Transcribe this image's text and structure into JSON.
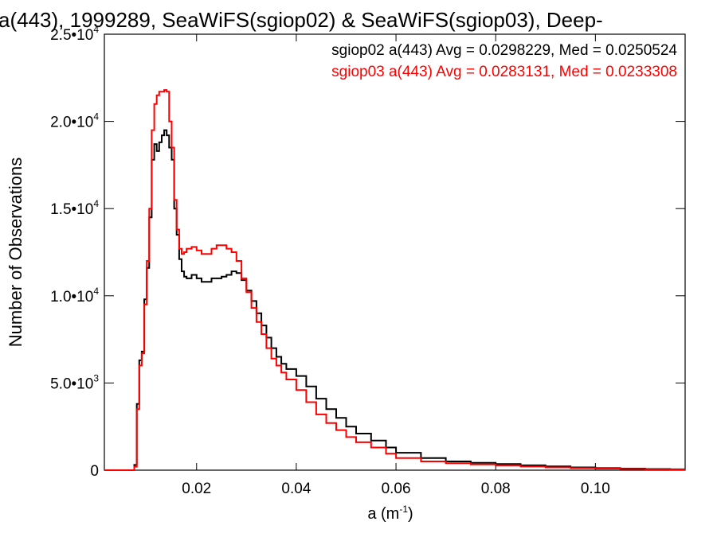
{
  "chart_data": {
    "type": "line",
    "title": "a(443), 1999289, SeaWiFS(sgiop02) & SeaWiFS(sgiop03), Deep-",
    "xlabel_base": "a (m",
    "xlabel_sup": "-1",
    "xlabel_tail": ")",
    "ylabel": "Number of Observations",
    "xlim": [
      0.0015,
      0.118
    ],
    "ylim": [
      0,
      25000
    ],
    "x_ticks": [
      {
        "value": 0.02,
        "label": "0.02"
      },
      {
        "value": 0.04,
        "label": "0.04"
      },
      {
        "value": 0.06,
        "label": "0.06"
      },
      {
        "value": 0.08,
        "label": "0.08"
      },
      {
        "value": 0.1,
        "label": "0.10"
      }
    ],
    "y_ticks": [
      {
        "value": 0,
        "base": "0",
        "exp": ""
      },
      {
        "value": 5000,
        "base": "5.0•10",
        "exp": "3"
      },
      {
        "value": 10000,
        "base": "1.0•10",
        "exp": "4"
      },
      {
        "value": 15000,
        "base": "1.5•10",
        "exp": "4"
      },
      {
        "value": 20000,
        "base": "2.0•10",
        "exp": "4"
      },
      {
        "value": 25000,
        "base": "2.5•10",
        "exp": "4"
      }
    ],
    "legend_position": "top-right",
    "series": [
      {
        "name": "sgiop02 a(443) Avg = 0.0298229, Med = 0.0250524",
        "color": "#000000",
        "step": "post",
        "x": [
          0.0015,
          0.0075,
          0.008,
          0.0085,
          0.009,
          0.0095,
          0.01,
          0.0105,
          0.011,
          0.0115,
          0.012,
          0.0125,
          0.013,
          0.0135,
          0.014,
          0.0145,
          0.015,
          0.0155,
          0.016,
          0.0165,
          0.017,
          0.0175,
          0.018,
          0.019,
          0.02,
          0.021,
          0.022,
          0.023,
          0.024,
          0.025,
          0.026,
          0.027,
          0.028,
          0.029,
          0.03,
          0.031,
          0.032,
          0.033,
          0.034,
          0.035,
          0.036,
          0.037,
          0.038,
          0.04,
          0.042,
          0.044,
          0.046,
          0.048,
          0.05,
          0.052,
          0.055,
          0.058,
          0.06,
          0.065,
          0.07,
          0.075,
          0.08,
          0.085,
          0.09,
          0.095,
          0.1,
          0.105,
          0.11,
          0.115,
          0.118
        ],
        "y": [
          0,
          300,
          3800,
          6300,
          6800,
          9800,
          11600,
          14500,
          17800,
          18700,
          18300,
          18800,
          19200,
          19500,
          19200,
          18500,
          17800,
          15000,
          13500,
          12100,
          11400,
          11100,
          11000,
          11200,
          11000,
          10800,
          10800,
          11000,
          11000,
          11100,
          11200,
          11400,
          11300,
          10900,
          10300,
          9700,
          9000,
          8300,
          7600,
          7000,
          6500,
          6100,
          5800,
          5400,
          4800,
          4100,
          3500,
          3000,
          2500,
          2100,
          1700,
          1300,
          1000,
          700,
          500,
          420,
          350,
          280,
          220,
          160,
          120,
          90,
          70,
          50,
          50
        ]
      },
      {
        "name": "sgiop03 a(443) Avg = 0.0283131, Med = 0.0233308",
        "color": "#ff0000",
        "step": "post",
        "x": [
          0.0015,
          0.0075,
          0.008,
          0.0085,
          0.009,
          0.0095,
          0.01,
          0.0105,
          0.011,
          0.0115,
          0.012,
          0.0125,
          0.013,
          0.0135,
          0.014,
          0.0145,
          0.015,
          0.0155,
          0.016,
          0.0165,
          0.017,
          0.0175,
          0.018,
          0.019,
          0.02,
          0.021,
          0.022,
          0.023,
          0.024,
          0.025,
          0.026,
          0.027,
          0.028,
          0.029,
          0.03,
          0.031,
          0.032,
          0.033,
          0.034,
          0.035,
          0.036,
          0.037,
          0.038,
          0.04,
          0.042,
          0.044,
          0.046,
          0.048,
          0.05,
          0.052,
          0.055,
          0.058,
          0.06,
          0.065,
          0.07,
          0.075,
          0.08,
          0.085,
          0.09,
          0.095,
          0.1,
          0.105,
          0.11,
          0.115,
          0.118
        ],
        "y": [
          0,
          200,
          3500,
          6000,
          6700,
          9500,
          12000,
          15000,
          19500,
          21000,
          21500,
          21700,
          21700,
          21800,
          21700,
          20000,
          18500,
          15500,
          13800,
          12700,
          12400,
          12500,
          12700,
          12800,
          12600,
          12400,
          12400,
          12700,
          12900,
          12900,
          12700,
          12500,
          12000,
          11000,
          10200,
          9300,
          8500,
          7800,
          7000,
          6400,
          6000,
          5600,
          5200,
          4600,
          3900,
          3200,
          2700,
          2300,
          1900,
          1600,
          1300,
          950,
          700,
          500,
          400,
          330,
          260,
          210,
          160,
          120,
          90,
          70,
          50,
          40,
          40
        ]
      }
    ]
  }
}
